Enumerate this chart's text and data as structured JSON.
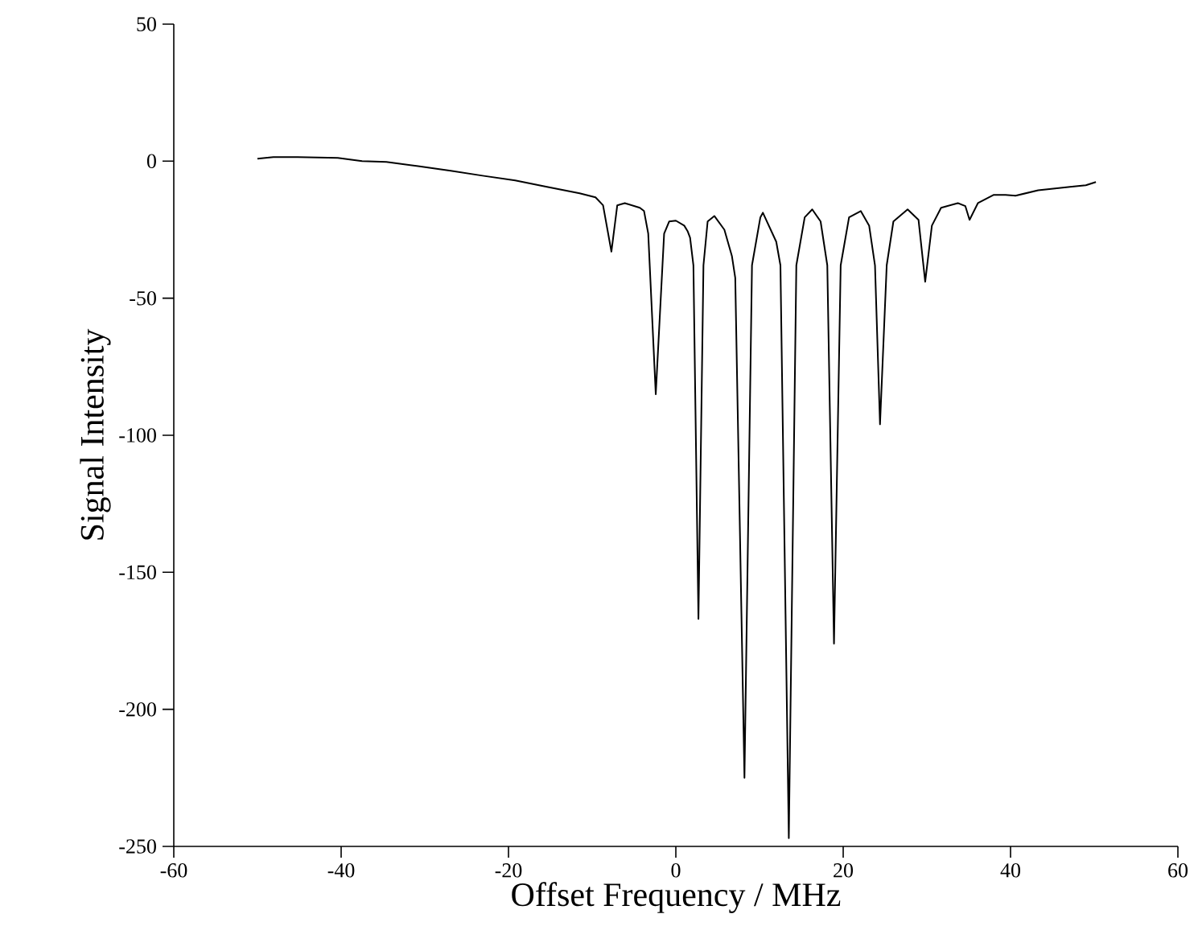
{
  "chart_data": {
    "type": "line",
    "xlabel": "Offset Frequency / MHz",
    "ylabel": "Signal Intensity",
    "xlim": [
      -60,
      60
    ],
    "xticks": [
      -60,
      -40,
      -20,
      0,
      20,
      40,
      60
    ],
    "ylim": [
      -250,
      50
    ],
    "yticks": [
      -250,
      -200,
      -150,
      -100,
      -50,
      0,
      50
    ],
    "grid": false,
    "marker": "none",
    "line_style": "solid",
    "series": [
      {
        "color": "#000000",
        "x": [
          -50,
          -48.1,
          -45.2,
          -40.4,
          -37.5,
          -34.6,
          -30.8,
          -26.9,
          -23.1,
          -19.2,
          -15.4,
          -11.5,
          -9.6,
          -8.7,
          -7.7,
          -7.0,
          -6.1,
          -4.3,
          -3.8,
          -3.3,
          -2.4,
          -1.4,
          -0.8,
          0,
          1.0,
          1.4,
          1.7,
          2.1,
          2.7,
          3.3,
          3.8,
          4.6,
          5.8,
          6.7,
          7.1,
          8.2,
          9.1,
          10.1,
          10.4,
          12.0,
          12.5,
          13.5,
          14.4,
          15.4,
          16.3,
          17.3,
          18.1,
          18.9,
          19.7,
          20.7,
          22.1,
          23.1,
          23.8,
          24.4,
          25.2,
          26.0,
          27.7,
          29.0,
          29.8,
          30.6,
          31.7,
          33.7,
          34.6,
          35.1,
          36.1,
          38.0,
          39.4,
          40.6,
          43.3,
          47.1,
          49.0,
          50.2
        ],
        "values": [
          0.9,
          1.5,
          1.5,
          1.2,
          0,
          -0.3,
          -1.8,
          -3.5,
          -5.3,
          -7.0,
          -9.4,
          -11.7,
          -13.2,
          -16.1,
          -33,
          -16.1,
          -15.3,
          -17,
          -18.2,
          -26.4,
          -85,
          -26.4,
          -22,
          -21.7,
          -23.5,
          -25.5,
          -27.9,
          -38,
          -167,
          -38,
          -22,
          -20,
          -25,
          -34.6,
          -42.6,
          -225,
          -38,
          -20.5,
          -18.8,
          -29.4,
          -38,
          -247,
          -38,
          -20.5,
          -17.6,
          -22,
          -38,
          -176,
          -38,
          -20.5,
          -18.2,
          -23.5,
          -38,
          -96,
          -38,
          -22,
          -17.6,
          -21.4,
          -44,
          -23.5,
          -17,
          -15.3,
          -16.4,
          -21.4,
          -15.3,
          -12.3,
          -12.3,
          -12.6,
          -10.6,
          -9.4,
          -8.8,
          -7.6
        ]
      }
    ]
  }
}
